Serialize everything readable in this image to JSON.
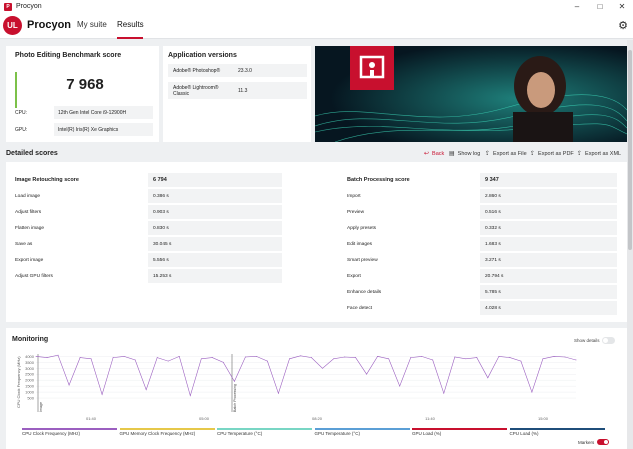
{
  "window": {
    "title": "Procyon"
  },
  "header": {
    "logo": "UL",
    "brand": "Procyon",
    "tabs": [
      {
        "label": "My suite"
      },
      {
        "label": "Results"
      }
    ],
    "active_tab": "Results"
  },
  "benchmark": {
    "title": "Photo Editing Benchmark score",
    "score": "7 968",
    "cpu_label": "CPU:",
    "cpu_value": "12th Gen Intel Core i9-12900H",
    "gpu_label": "GPU:",
    "gpu_value": "Intel(R) Iris(R) Xe Graphics"
  },
  "app_versions": {
    "title": "Application versions",
    "items": [
      {
        "name": "Adobe® Photoshop®",
        "version": "23.3.0"
      },
      {
        "name": "Adobe® Lightroom® Classic",
        "version": "11.3"
      }
    ]
  },
  "detailed": {
    "title": "Detailed scores",
    "actions": {
      "back": "Back",
      "show_log": "Show log",
      "export_file": "Export as File",
      "export_pdf": "Export as PDF",
      "export_xml": "Export as XML"
    },
    "left": {
      "header": {
        "label": "Image Retouching score",
        "value": "6 794"
      },
      "rows": [
        {
          "label": "Load image",
          "value": "0.386 s"
        },
        {
          "label": "Adjust filters",
          "value": "0.903 s"
        },
        {
          "label": "Flatten image",
          "value": "0.830 s"
        },
        {
          "label": "Save as",
          "value": "30.045 s"
        },
        {
          "label": "Export image",
          "value": "5.556 s"
        },
        {
          "label": "Adjust GPU filters",
          "value": "15.253 s"
        }
      ]
    },
    "right": {
      "header": {
        "label": "Batch Processing score",
        "value": "9 347"
      },
      "rows": [
        {
          "label": "Import",
          "value": "2.860 s"
        },
        {
          "label": "Preview",
          "value": "0.516 s"
        },
        {
          "label": "Apply presets",
          "value": "0.332 s"
        },
        {
          "label": "Edit images",
          "value": "1.683 s"
        },
        {
          "label": "Smart preview",
          "value": "3.271 s"
        },
        {
          "label": "Export",
          "value": "20.794 s"
        },
        {
          "label": "Enhance details",
          "value": "5.785 s"
        },
        {
          "label": "Face detect",
          "value": "4.028 s"
        }
      ]
    }
  },
  "monitoring": {
    "title": "Monitoring",
    "show_details": "Show details",
    "y_label": "CPU Clock Frequency (MHz)",
    "y_ticks": [
      "4000",
      "3500",
      "3000",
      "2500",
      "2000",
      "1500",
      "1000",
      "500"
    ],
    "x_ticks": [
      "01:40",
      "05:00",
      "08:20",
      "11:40",
      "15:00"
    ],
    "markers": [
      "Image",
      "Batch Processing"
    ],
    "legend": [
      {
        "label": "CPU Clock Frequency (MHz)",
        "color": "#9b5fc0"
      },
      {
        "label": "GPU Memory Clock Frequency (MHz)",
        "color": "#e6c84a"
      },
      {
        "label": "CPU Temperature (°C)",
        "color": "#78d6c4"
      },
      {
        "label": "GPU Temperature (°C)",
        "color": "#5b9fd6"
      },
      {
        "label": "GPU Load (%)",
        "color": "#c8102e"
      },
      {
        "label": "CPU Load (%)",
        "color": "#1f4e7a"
      }
    ],
    "markers_label": "Markers",
    "chart_data": {
      "type": "line",
      "title": "",
      "xlabel": "",
      "ylabel": "CPU Clock Frequency (MHz)",
      "ylim": [
        0,
        4200
      ],
      "series": [
        {
          "name": "CPU Clock Frequency (MHz)",
          "values": [
            4000,
            3900,
            4100,
            1600,
            3900,
            3800,
            800,
            3900,
            4000,
            3700,
            1200,
            3900,
            3600,
            4000,
            700,
            3800,
            3900,
            3500,
            1900,
            3950,
            4000,
            3600,
            900,
            3800,
            4050,
            3900,
            3000,
            3800,
            3950,
            3900,
            2500,
            4000,
            3800,
            1500,
            3900,
            4000,
            3700,
            900,
            3950,
            3800,
            3900,
            2200,
            4000,
            3900,
            3600,
            1000,
            3800,
            4000,
            3950,
            3700
          ]
        }
      ],
      "accent": "#c8102e"
    }
  }
}
